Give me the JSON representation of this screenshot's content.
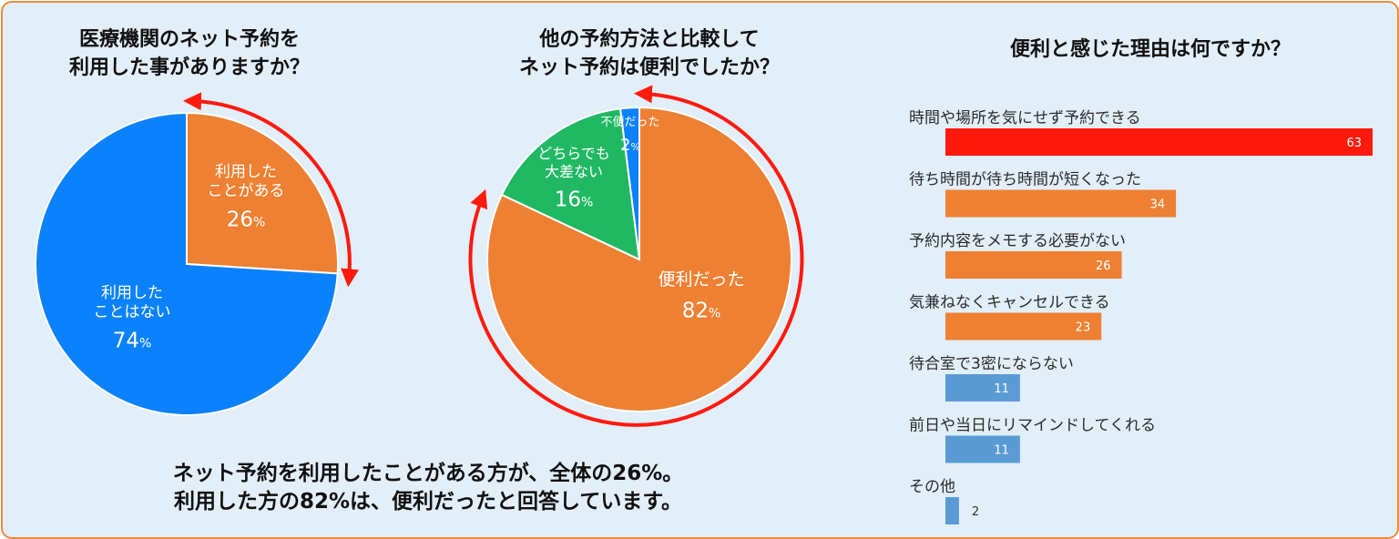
{
  "colors": {
    "orange": "#ee8033",
    "blue": "#0b82fb",
    "green": "#21b863",
    "red": "#ff1a0d",
    "bar_blue": "#5b9bd5",
    "frame": "#ee8a3c",
    "background": "#e2eef8"
  },
  "titles": {
    "pie1_line1": "医療機関のネット予約を",
    "pie1_line2": "利用した事がありますか？",
    "pie2_line1": "他の予約方法と比較して",
    "pie2_line2": "ネット予約は便利でしたか？",
    "bar": "便利と感じた理由は何ですか？"
  },
  "conclusion": {
    "line1": "ネット予約を利用したことがある方が、全体の26%。",
    "line2": "利用した方の82%は、便利だったと回答しています。"
  },
  "chart_data": [
    {
      "type": "pie",
      "title": "医療機関のネット予約を利用した事がありますか？",
      "slices": [
        {
          "label": [
            "利用した",
            "ことがある"
          ],
          "value": 26,
          "display": "26",
          "unit": "%",
          "color": "#ee8033"
        },
        {
          "label": [
            "利用した",
            "ことはない"
          ],
          "value": 74,
          "display": "74",
          "unit": "%",
          "color": "#0b82fb"
        }
      ]
    },
    {
      "type": "pie",
      "title": "他の予約方法と比較してネット予約は便利でしたか？",
      "slices": [
        {
          "label": [
            "便利だった"
          ],
          "value": 82,
          "display": "82",
          "unit": "%",
          "color": "#ee8033"
        },
        {
          "label": [
            "どちらでも",
            "大差ない"
          ],
          "value": 16,
          "display": "16",
          "unit": "%",
          "color": "#21b863"
        },
        {
          "label": [
            "不便だった"
          ],
          "value": 2,
          "display": "2",
          "unit": "%",
          "color": "#0b82fb"
        }
      ]
    },
    {
      "type": "bar",
      "orientation": "horizontal",
      "title": "便利と感じた理由は何ですか？",
      "categories": [
        "時間や場所を気にせず予約できる",
        "待ち時間が待ち時間が短くなった",
        "予約内容をメモする必要がない",
        "気兼ねなくキャンセルできる",
        "待合室で3密にならない",
        "前日や当日にリマインドしてくれる",
        "その他"
      ],
      "values": [
        63,
        34,
        26,
        23,
        11,
        11,
        2
      ],
      "colors": [
        "#ff1a0d",
        "#ee8033",
        "#ee8033",
        "#ee8033",
        "#5b9bd5",
        "#5b9bd5",
        "#5b9bd5"
      ],
      "xlim": [
        0,
        63
      ]
    }
  ]
}
